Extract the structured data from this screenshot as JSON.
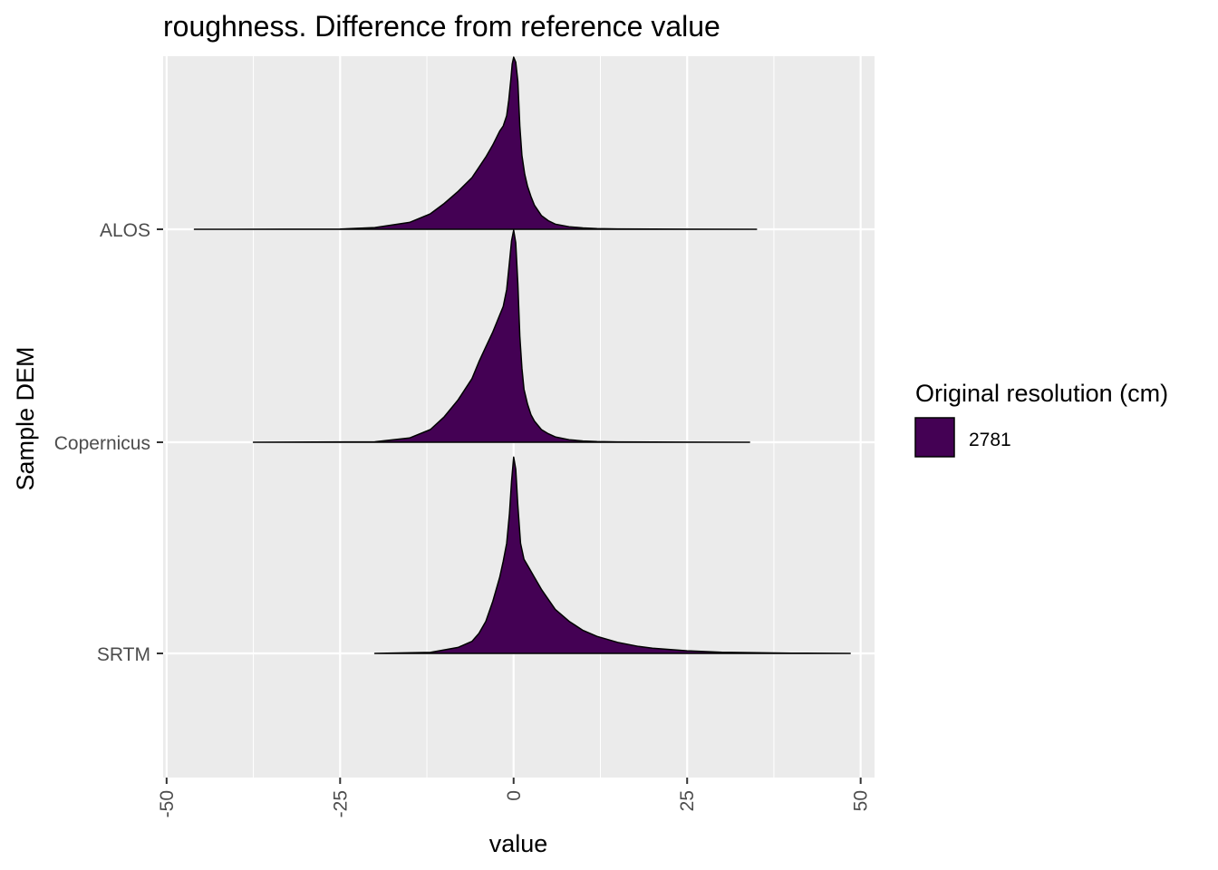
{
  "chart_data": {
    "type": "area",
    "subtype": "ridgeline-density",
    "title": "roughness. Difference from reference value",
    "xlabel": "value",
    "ylabel": "Sample DEM",
    "xlim": [
      -50.5,
      52
    ],
    "x_ticks": [
      -50,
      -25,
      0,
      25,
      50
    ],
    "categories": [
      "ALOS",
      "Copernicus",
      "SRTM"
    ],
    "grid": true,
    "fill_color": "#440154",
    "panel_color": "#ebebeb",
    "legend": {
      "title": "Original resolution (cm)",
      "position": "right",
      "entries": [
        {
          "label": "2781",
          "color": "#440154"
        }
      ]
    },
    "series": [
      {
        "category": "ALOS",
        "range": [
          -46,
          35
        ],
        "x": [
          -46,
          -25,
          -20,
          -15,
          -12,
          -10,
          -8,
          -6,
          -5,
          -4,
          -3,
          -2.5,
          -2,
          -1.5,
          -1,
          -0.7,
          -0.4,
          -0.2,
          0,
          0.3,
          0.6,
          0.9,
          1.2,
          1.6,
          2,
          2.5,
          3,
          4,
          5,
          6,
          8,
          10,
          12,
          15,
          20,
          25,
          35
        ],
        "density": [
          0,
          0.001,
          0.01,
          0.04,
          0.09,
          0.15,
          0.22,
          0.3,
          0.36,
          0.42,
          0.49,
          0.53,
          0.57,
          0.6,
          0.66,
          0.75,
          0.87,
          0.96,
          1.0,
          0.97,
          0.86,
          0.6,
          0.43,
          0.32,
          0.25,
          0.19,
          0.14,
          0.08,
          0.05,
          0.03,
          0.015,
          0.008,
          0.004,
          0.002,
          0.001,
          0.0005,
          0
        ]
      },
      {
        "category": "Copernicus",
        "range": [
          -37.5,
          34
        ],
        "x": [
          -37.5,
          -20,
          -15,
          -12,
          -10,
          -8,
          -6,
          -5,
          -4,
          -3,
          -2.5,
          -2,
          -1.5,
          -1,
          -0.6,
          -0.3,
          0,
          0.3,
          0.6,
          0.9,
          1.2,
          1.5,
          2,
          2.5,
          3,
          4,
          5,
          6,
          8,
          10,
          12,
          15,
          20,
          25,
          34
        ],
        "density": [
          0,
          0.002,
          0.02,
          0.06,
          0.12,
          0.2,
          0.3,
          0.38,
          0.45,
          0.52,
          0.56,
          0.6,
          0.64,
          0.72,
          0.85,
          0.95,
          1.0,
          0.94,
          0.75,
          0.5,
          0.35,
          0.25,
          0.18,
          0.13,
          0.1,
          0.06,
          0.04,
          0.025,
          0.012,
          0.006,
          0.003,
          0.0015,
          0.0008,
          0.0004,
          0
        ]
      },
      {
        "category": "SRTM",
        "range": [
          -20,
          48.5
        ],
        "x": [
          -20,
          -12,
          -8,
          -6,
          -5,
          -4,
          -3,
          -2,
          -1.5,
          -1,
          -0.6,
          -0.3,
          0,
          0.3,
          0.6,
          1,
          1.5,
          2,
          2.5,
          3,
          4,
          5,
          6,
          8,
          10,
          12,
          15,
          18,
          20,
          25,
          30,
          35,
          40,
          48.5
        ],
        "density": [
          0,
          0.005,
          0.03,
          0.06,
          0.1,
          0.16,
          0.26,
          0.38,
          0.46,
          0.55,
          0.7,
          0.86,
          0.98,
          0.92,
          0.74,
          0.55,
          0.47,
          0.44,
          0.41,
          0.38,
          0.32,
          0.27,
          0.22,
          0.16,
          0.115,
          0.085,
          0.055,
          0.035,
          0.026,
          0.013,
          0.006,
          0.003,
          0.0015,
          0
        ]
      }
    ]
  }
}
